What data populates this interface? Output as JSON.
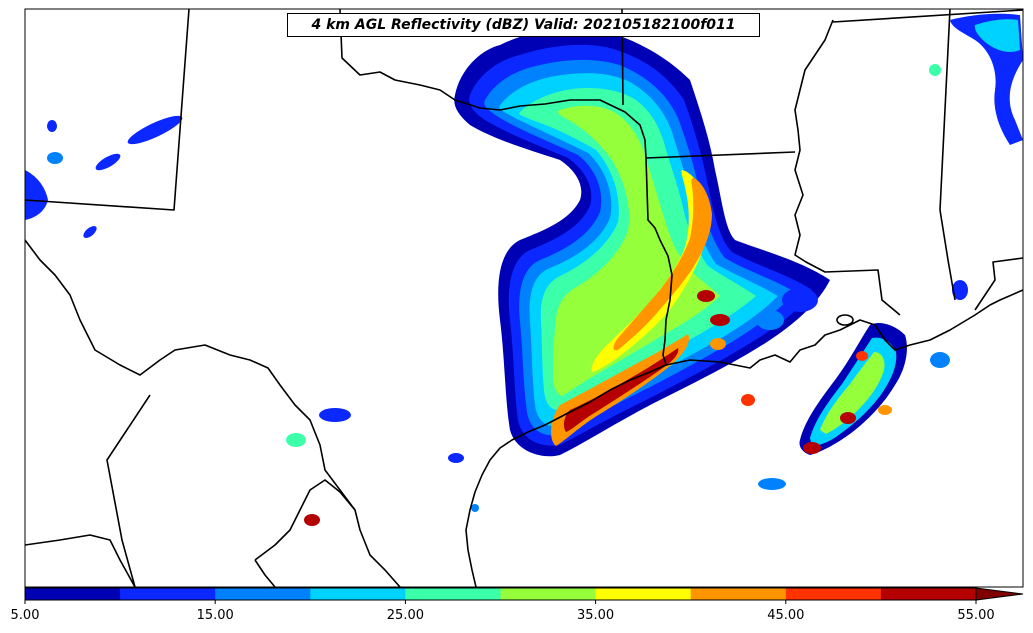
{
  "title": "4 km AGL Reflectivity (dBZ) Valid: 202105182100f011",
  "colorbar": {
    "tick_labels": [
      "5.00",
      "15.00",
      "25.00",
      "35.00",
      "45.00",
      "55.00"
    ],
    "colors": [
      "#0000b4",
      "#0a28ff",
      "#0082ff",
      "#00d2ff",
      "#3cffaa",
      "#96ff3c",
      "#ffff00",
      "#ff9600",
      "#ff3200",
      "#b40000"
    ],
    "extend_color": "#800000",
    "extend": "max"
  },
  "map": {
    "background": "#ffffff",
    "boundary_color": "#000000"
  }
}
